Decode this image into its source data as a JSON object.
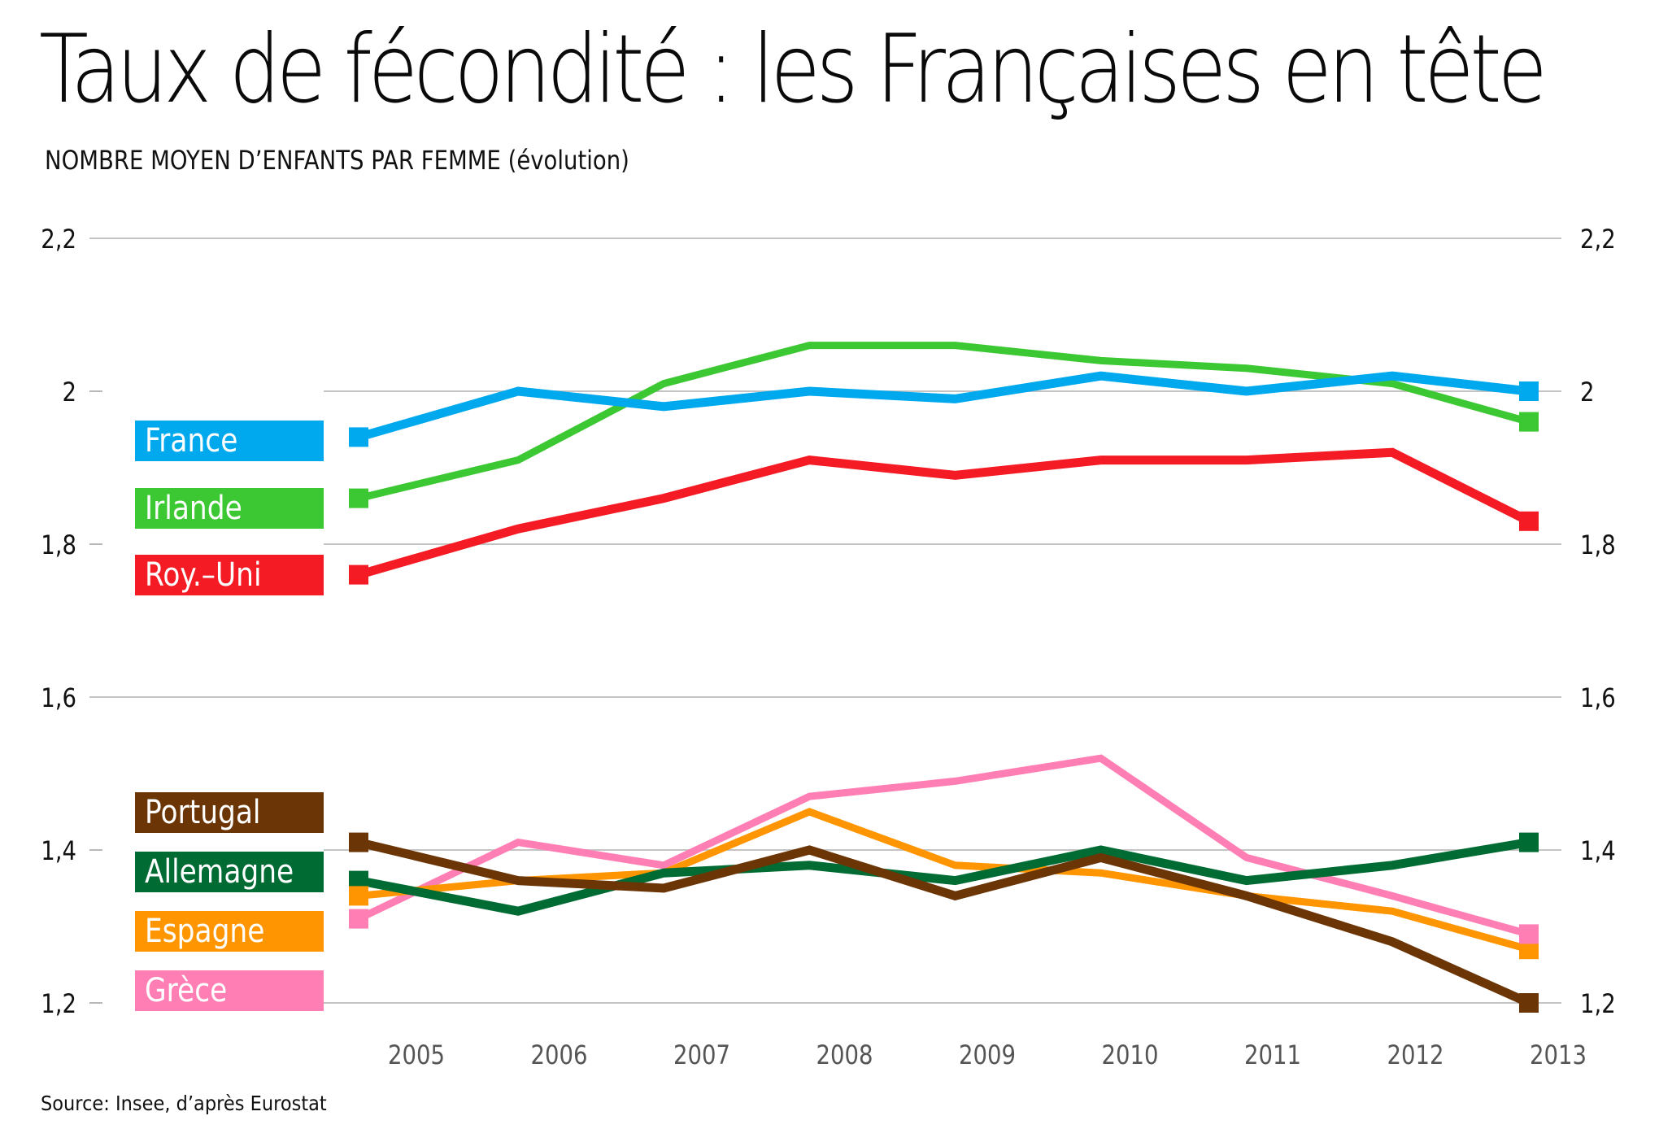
{
  "title": "Taux de fécondité : les Françaises en tête",
  "subtitle": "NOMBRE MOYEN D’ENFANTS PAR FEMME (évolution)",
  "source": "Source: Insee, d’après Eurostat",
  "chart_data": {
    "type": "line",
    "title": "Taux de fécondité : les Françaises en tête",
    "subtitle": "NOMBRE MOYEN D’ENFANTS PAR FEMME (évolution)",
    "xlabel": "",
    "ylabel": "Nombre moyen d’enfants par femme",
    "x": [
      "2005",
      "2006",
      "2007",
      "2008",
      "2009",
      "2010",
      "2011",
      "2012",
      "2013"
    ],
    "ylim": [
      1.2,
      2.2
    ],
    "yticks": [
      1.2,
      1.4,
      1.6,
      1.8,
      2.0,
      2.2
    ],
    "ytick_labels": [
      "1,2",
      "1,4",
      "1,6",
      "1,8",
      "2",
      "2,2"
    ],
    "grid": true,
    "legend_placement": "left",
    "series": [
      {
        "name": "France",
        "color": "#00a9ee",
        "values": [
          1.94,
          2.0,
          1.98,
          2.0,
          1.99,
          2.02,
          2.0,
          2.02,
          2.0
        ]
      },
      {
        "name": "Irlande",
        "color": "#3cc832",
        "values": [
          1.86,
          1.91,
          2.01,
          2.06,
          2.06,
          2.04,
          2.03,
          2.01,
          1.96
        ]
      },
      {
        "name": "Roy.–Uni",
        "color": "#f51b25",
        "values": [
          1.76,
          1.82,
          1.86,
          1.91,
          1.89,
          1.91,
          1.91,
          1.92,
          1.83
        ]
      },
      {
        "name": "Portugal",
        "color": "#6b3506",
        "values": [
          1.41,
          1.36,
          1.35,
          1.4,
          1.34,
          1.39,
          1.34,
          1.28,
          1.2
        ]
      },
      {
        "name": "Allemagne",
        "color": "#006b33",
        "values": [
          1.36,
          1.32,
          1.37,
          1.38,
          1.36,
          1.4,
          1.36,
          1.38,
          1.41
        ]
      },
      {
        "name": "Espagne",
        "color": "#ff9500",
        "values": [
          1.34,
          1.36,
          1.37,
          1.45,
          1.38,
          1.37,
          1.34,
          1.32,
          1.27
        ]
      },
      {
        "name": "Grèce",
        "color": "#ff7fb4",
        "values": [
          1.31,
          1.41,
          1.38,
          1.47,
          1.49,
          1.52,
          1.39,
          1.34,
          1.29
        ]
      }
    ]
  }
}
